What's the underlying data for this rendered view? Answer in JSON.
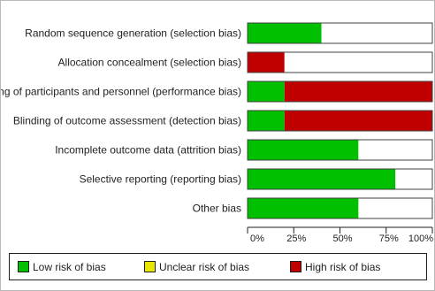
{
  "chart_data": {
    "type": "bar",
    "orientation": "horizontal",
    "stacked": true,
    "title": "",
    "xlabel": "",
    "ylabel": "",
    "xlim": [
      0,
      100
    ],
    "x_ticks": [
      "0%",
      "25%",
      "50%",
      "75%",
      "100%"
    ],
    "grid": false,
    "legend_position": "bottom",
    "categories": [
      "Random sequence generation (selection bias)",
      "Allocation concealment (selection bias)",
      "Blinding of participants and personnel (performance bias)",
      "Blinding of outcome assessment (detection bias)",
      "Incomplete outcome data (attrition bias)",
      "Selective reporting (reporting bias)",
      "Other bias"
    ],
    "series": [
      {
        "name": "Low risk of bias",
        "color": "#00c000",
        "values": [
          40,
          0,
          20,
          20,
          60,
          80,
          60
        ]
      },
      {
        "name": "High risk of bias",
        "color": "#c00000",
        "values": [
          0,
          20,
          80,
          80,
          0,
          0,
          0
        ]
      },
      {
        "name": "Unclear risk of bias",
        "color": "#ffffff",
        "values": [
          60,
          80,
          0,
          0,
          40,
          20,
          40
        ]
      }
    ],
    "legend": [
      {
        "name": "Low risk of bias",
        "color": "#00c000"
      },
      {
        "name": "Unclear risk of bias",
        "color": "#e6e600"
      },
      {
        "name": "High risk of bias",
        "color": "#c00000"
      }
    ]
  }
}
